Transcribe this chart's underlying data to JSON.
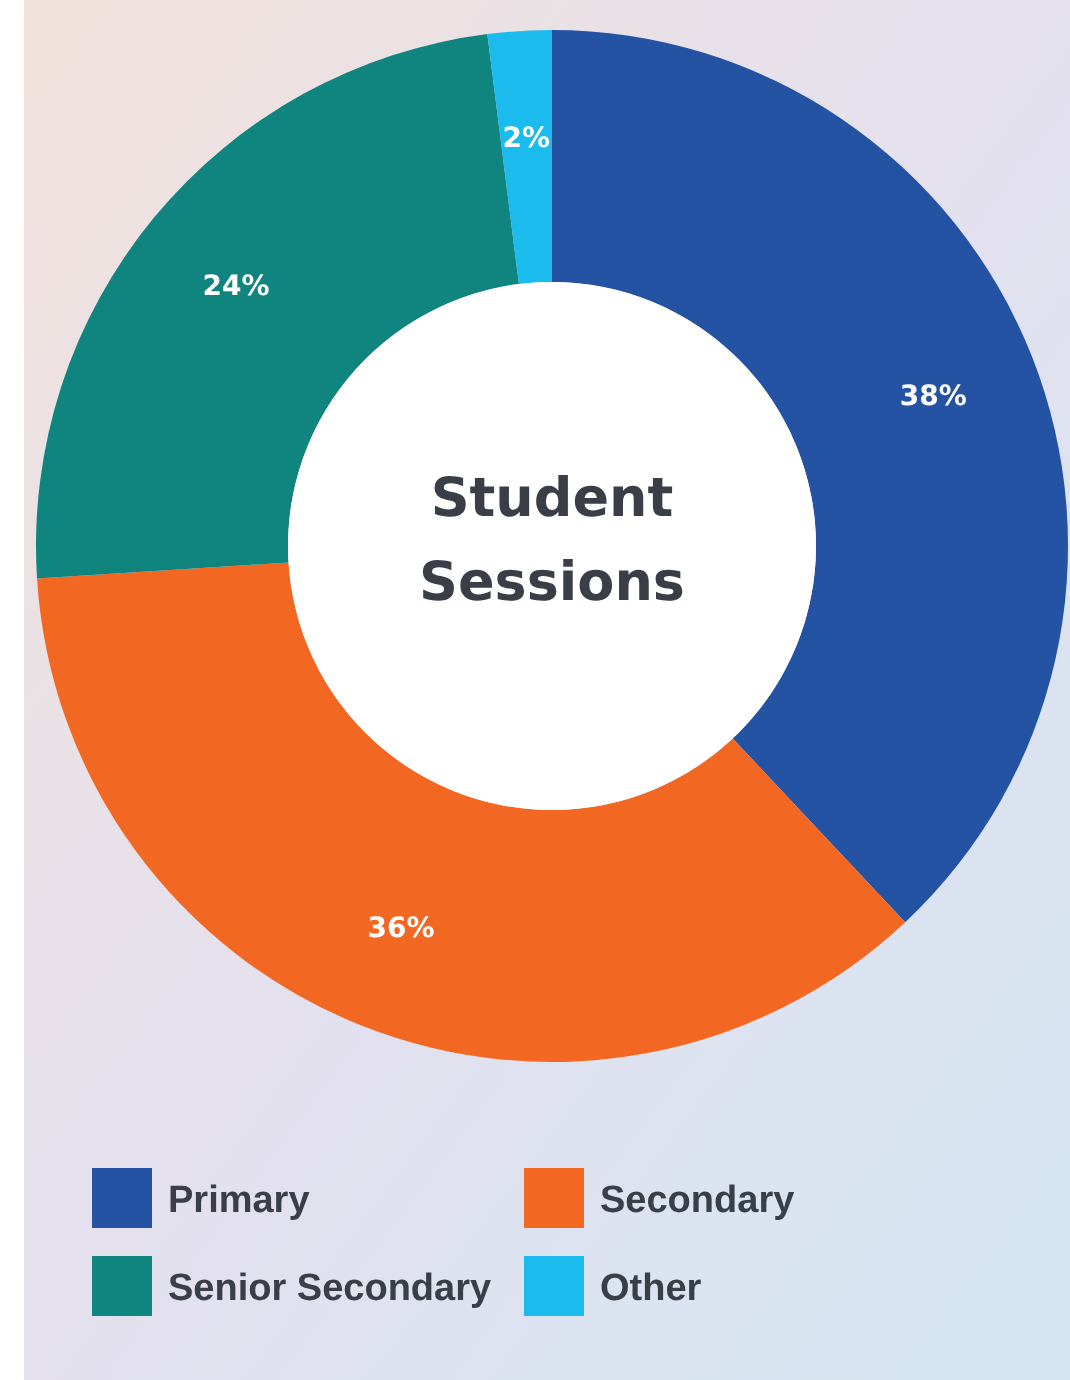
{
  "chart_data": {
    "type": "donut",
    "title": "Student Sessions",
    "categories": [
      "Primary",
      "Secondary",
      "Senior Secondary",
      "Other"
    ],
    "values": [
      38,
      36,
      24,
      2
    ],
    "colors": [
      "#2553a4",
      "#f26722",
      "#10847e",
      "#1bbbee"
    ],
    "value_labels": [
      "38%",
      "36%",
      "24%",
      "2%"
    ],
    "legend": "bottom"
  }
}
